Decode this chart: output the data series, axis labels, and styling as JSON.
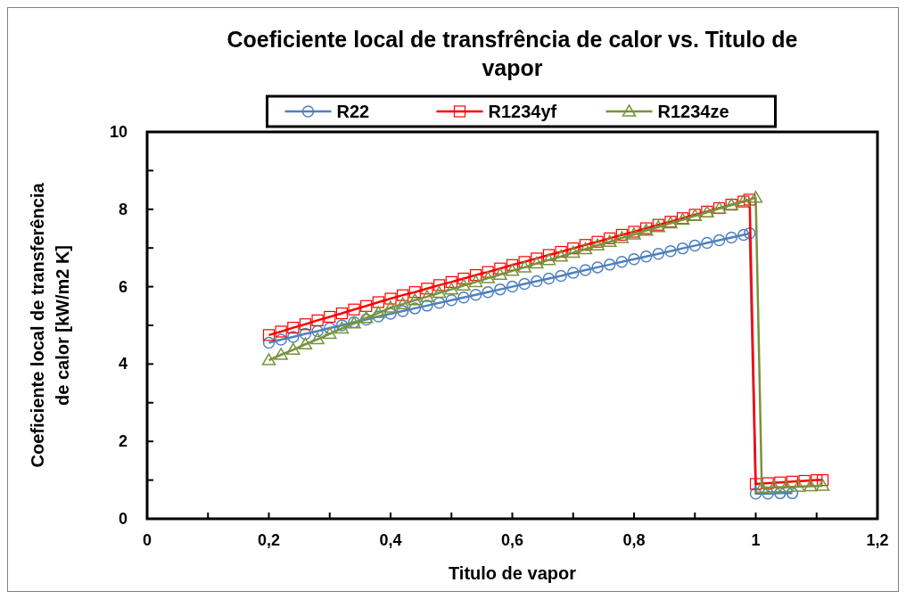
{
  "chart_data": {
    "type": "line",
    "title": "Coeficiente local de transfrência de calor vs. Titulo de vapor",
    "xlabel": "Titulo de vapor",
    "ylabel": "Coeficiente local de transferência de calor  [kW/m2 K]",
    "xlim": [
      0,
      1.2
    ],
    "xticks": [
      0,
      {
        "value": 0.1,
        "label": null
      },
      {
        "value": 0.2,
        "label": "0,2"
      },
      {
        "value": 0.3,
        "label": null
      },
      {
        "value": 0.4,
        "label": "0,4"
      },
      {
        "value": 0.5,
        "label": null
      },
      {
        "value": 0.6,
        "label": "0,6"
      },
      {
        "value": 0.7,
        "label": null
      },
      {
        "value": 0.8,
        "label": "0,8"
      },
      {
        "value": 0.9,
        "label": null
      },
      1,
      {
        "value": 1.1,
        "label": null
      },
      {
        "value": 1.2,
        "label": "1,2"
      }
    ],
    "ylim": [
      0,
      10
    ],
    "yticks": [
      0,
      {
        "value": 1,
        "label": null
      },
      2,
      {
        "value": 3,
        "label": null
      },
      4,
      {
        "value": 5,
        "label": null
      },
      6,
      {
        "value": 7,
        "label": null
      },
      8,
      {
        "value": 9,
        "label": null
      },
      10
    ],
    "grid": false,
    "legend": "top",
    "line_style": "solid",
    "series": [
      {
        "name": "R22",
        "color": "#4f81bd",
        "marker": "circle",
        "x": [
          0.2,
          0.22,
          0.24,
          0.26,
          0.28,
          0.3,
          0.32,
          0.34,
          0.36,
          0.38,
          0.4,
          0.42,
          0.44,
          0.46,
          0.48,
          0.5,
          0.52,
          0.54,
          0.56,
          0.58,
          0.6,
          0.62,
          0.64,
          0.66,
          0.68,
          0.7,
          0.72,
          0.74,
          0.76,
          0.78,
          0.8,
          0.82,
          0.84,
          0.86,
          0.88,
          0.9,
          0.92,
          0.94,
          0.96,
          0.98,
          0.99,
          1,
          1.02,
          1.04,
          1.06
        ],
        "values": [
          4.55,
          4.63,
          4.7,
          4.78,
          4.85,
          4.93,
          5,
          5.08,
          5.15,
          5.23,
          5.3,
          5.37,
          5.44,
          5.51,
          5.58,
          5.65,
          5.72,
          5.79,
          5.86,
          5.93,
          6,
          6.07,
          6.14,
          6.21,
          6.28,
          6.36,
          6.43,
          6.5,
          6.57,
          6.64,
          6.71,
          6.78,
          6.85,
          6.92,
          6.99,
          7.06,
          7.13,
          7.2,
          7.27,
          7.34,
          7.38,
          0.65,
          0.65,
          0.66,
          0.66
        ]
      },
      {
        "name": "R1234yf",
        "color": "#ff0000",
        "marker": "square",
        "x": [
          0.2,
          0.22,
          0.24,
          0.26,
          0.28,
          0.3,
          0.32,
          0.34,
          0.36,
          0.38,
          0.4,
          0.42,
          0.44,
          0.46,
          0.48,
          0.5,
          0.52,
          0.54,
          0.56,
          0.58,
          0.6,
          0.62,
          0.64,
          0.66,
          0.68,
          0.7,
          0.72,
          0.74,
          0.76,
          0.78,
          0.8,
          0.82,
          0.84,
          0.86,
          0.88,
          0.9,
          0.92,
          0.94,
          0.96,
          0.98,
          0.99,
          1,
          1.02,
          1.04,
          1.06,
          1.08,
          1.1,
          1.11
        ],
        "values": [
          4.75,
          4.84,
          4.94,
          5.03,
          5.13,
          5.22,
          5.31,
          5.41,
          5.5,
          5.6,
          5.69,
          5.78,
          5.86,
          5.95,
          6.04,
          6.12,
          6.21,
          6.3,
          6.38,
          6.47,
          6.56,
          6.64,
          6.73,
          6.82,
          6.9,
          6.99,
          7.08,
          7.16,
          7.25,
          7.34,
          7.42,
          7.51,
          7.6,
          7.68,
          7.77,
          7.86,
          7.94,
          8.03,
          8.12,
          8.2,
          8.25,
          0.9,
          0.92,
          0.94,
          0.96,
          0.98,
          1,
          1
        ]
      },
      {
        "name": "R1234ze",
        "color": "#77933c",
        "marker": "triangle",
        "x": [
          0.2,
          0.22,
          0.24,
          0.26,
          0.28,
          0.3,
          0.32,
          0.34,
          0.36,
          0.38,
          0.4,
          0.42,
          0.44,
          0.46,
          0.48,
          0.5,
          0.52,
          0.54,
          0.56,
          0.58,
          0.6,
          0.62,
          0.64,
          0.66,
          0.68,
          0.7,
          0.72,
          0.74,
          0.76,
          0.78,
          0.8,
          0.82,
          0.84,
          0.86,
          0.88,
          0.9,
          0.92,
          0.94,
          0.96,
          0.98,
          1,
          1.01,
          1.03,
          1.05,
          1.07,
          1.09,
          1.11
        ],
        "values": [
          4.1,
          4.24,
          4.37,
          4.51,
          4.64,
          4.78,
          4.92,
          5.05,
          5.19,
          5.32,
          5.46,
          5.55,
          5.65,
          5.74,
          5.84,
          5.93,
          6.03,
          6.12,
          6.22,
          6.31,
          6.41,
          6.5,
          6.6,
          6.69,
          6.78,
          6.88,
          6.97,
          7.07,
          7.16,
          7.26,
          7.35,
          7.45,
          7.54,
          7.64,
          7.73,
          7.83,
          7.92,
          8.02,
          8.11,
          8.21,
          8.3,
          0.8,
          0.81,
          0.82,
          0.83,
          0.84,
          0.85
        ]
      }
    ]
  }
}
